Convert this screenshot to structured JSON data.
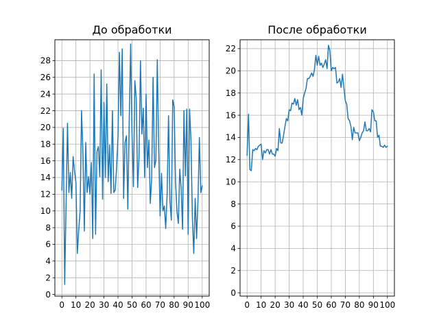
{
  "figure": {
    "background": "#ffffff"
  },
  "chart_data": [
    {
      "type": "line",
      "title": "До обработки",
      "xlabel": "",
      "ylabel": "",
      "xlim": [
        -5,
        105
      ],
      "ylim": [
        -0.2,
        30.5
      ],
      "xticks": [
        0,
        10,
        20,
        30,
        40,
        50,
        60,
        70,
        80,
        90,
        100
      ],
      "yticks": [
        0,
        2,
        4,
        6,
        8,
        10,
        12,
        14,
        16,
        18,
        20,
        22,
        24,
        26,
        28
      ],
      "grid": true,
      "legend": "none",
      "color": "#1f77b4",
      "series": [
        {
          "x": [
            0,
            1,
            2,
            3,
            4,
            5,
            6,
            7,
            8,
            9,
            10,
            11,
            12,
            13,
            14,
            15,
            16,
            17,
            18,
            19,
            20,
            21,
            22,
            23,
            24,
            25,
            26,
            27,
            28,
            29,
            30,
            31,
            32,
            33,
            34,
            35,
            36,
            37,
            38,
            39,
            40,
            41,
            42,
            43,
            44,
            45,
            46,
            47,
            48,
            49,
            50,
            51,
            52,
            53,
            54,
            55,
            56,
            57,
            58,
            59,
            60,
            61,
            62,
            63,
            64,
            65,
            66,
            67,
            68,
            69,
            70,
            71,
            72,
            73,
            74,
            75,
            76,
            77,
            78,
            79,
            80,
            81,
            82,
            83,
            84,
            85,
            86,
            87,
            88,
            89,
            90,
            91,
            92,
            93,
            94,
            95,
            96,
            97,
            98,
            99,
            100
          ],
          "y": [
            12.5,
            19.9,
            1.2,
            11.0,
            20.5,
            12.2,
            14.6,
            11.5,
            16.5,
            14.8,
            13.4,
            4.9,
            7.7,
            10.0,
            22.0,
            17.0,
            7.6,
            18.2,
            12.2,
            14.1,
            12.0,
            15.8,
            6.7,
            26.4,
            7.2,
            17.1,
            17.7,
            14.1,
            26.9,
            11.4,
            23.0,
            14.0,
            25.2,
            13.5,
            17.9,
            12.1,
            22.0,
            12.2,
            12.5,
            15.2,
            19.0,
            29.0,
            21.4,
            29.4,
            11.5,
            18.2,
            19.0,
            10.2,
            20.8,
            30.0,
            19.1,
            12.9,
            25.6,
            23.5,
            12.8,
            16.5,
            28.0,
            19.2,
            22.3,
            14.0,
            24.0,
            15.2,
            18.5,
            10.9,
            14.0,
            26.0,
            15.2,
            16.1,
            28.1,
            17.5,
            9.4,
            14.5,
            10.0,
            10.6,
            7.9,
            12.0,
            21.4,
            11.2,
            8.9,
            23.3,
            22.5,
            13.5,
            10.0,
            8.5,
            15.0,
            12.7,
            7.8,
            22.0,
            14.2,
            22.2,
            7.2,
            22.2,
            18.5,
            9.2,
            4.9,
            11.5,
            6.7,
            11.3,
            18.8,
            12.2,
            13.0
          ]
        }
      ]
    },
    {
      "type": "line",
      "title": "После обработки",
      "xlabel": "",
      "ylabel": "",
      "xlim": [
        -5,
        105
      ],
      "ylim": [
        -0.3,
        22.8
      ],
      "xticks": [
        0,
        10,
        20,
        30,
        40,
        50,
        60,
        70,
        80,
        90,
        100
      ],
      "yticks": [
        0,
        2,
        4,
        6,
        8,
        10,
        12,
        14,
        16,
        18,
        20,
        22
      ],
      "grid": true,
      "legend": "none",
      "color": "#1f77b4",
      "series": [
        {
          "x": [
            0,
            1,
            2,
            3,
            4,
            5,
            6,
            7,
            8,
            9,
            10,
            11,
            12,
            13,
            14,
            15,
            16,
            17,
            18,
            19,
            20,
            21,
            22,
            23,
            24,
            25,
            26,
            27,
            28,
            29,
            30,
            31,
            32,
            33,
            34,
            35,
            36,
            37,
            38,
            39,
            40,
            41,
            42,
            43,
            44,
            45,
            46,
            47,
            48,
            49,
            50,
            51,
            52,
            53,
            54,
            55,
            56,
            57,
            58,
            59,
            60,
            61,
            62,
            63,
            64,
            65,
            66,
            67,
            68,
            69,
            70,
            71,
            72,
            73,
            74,
            75,
            76,
            77,
            78,
            79,
            80,
            81,
            82,
            83,
            84,
            85,
            86,
            87,
            88,
            89,
            90,
            91,
            92,
            93,
            94,
            95,
            96,
            97,
            98,
            99,
            100
          ],
          "y": [
            12.4,
            16.1,
            11.1,
            11.0,
            12.9,
            12.8,
            13.0,
            12.9,
            13.2,
            13.3,
            13.4,
            12.0,
            12.8,
            12.6,
            12.9,
            12.9,
            12.5,
            12.9,
            12.5,
            12.5,
            12.3,
            13.0,
            12.8,
            14.8,
            13.5,
            13.5,
            14.2,
            15.0,
            15.7,
            15.5,
            16.5,
            16.4,
            17.1,
            17.0,
            17.5,
            16.9,
            17.4,
            16.5,
            16.7,
            16.0,
            17.5,
            18.0,
            18.4,
            19.3,
            19.3,
            19.5,
            19.8,
            19.5,
            20.1,
            21.4,
            20.5,
            21.3,
            20.5,
            20.7,
            20.3,
            20.6,
            21.0,
            20.2,
            22.3,
            21.8,
            20.0,
            20.3,
            20.2,
            20.3,
            18.9,
            19.0,
            19.3,
            18.5,
            19.7,
            18.5,
            17.3,
            17.0,
            15.7,
            15.5,
            15.0,
            13.8,
            14.9,
            14.4,
            14.4,
            14.4,
            13.7,
            14.0,
            14.4,
            14.6,
            15.4,
            14.6,
            14.6,
            14.8,
            14.5,
            16.5,
            16.3,
            15.5,
            15.5,
            14.0,
            14.2,
            13.2,
            13.2,
            13.1,
            13.3,
            13.1,
            13.2
          ]
        }
      ]
    }
  ]
}
